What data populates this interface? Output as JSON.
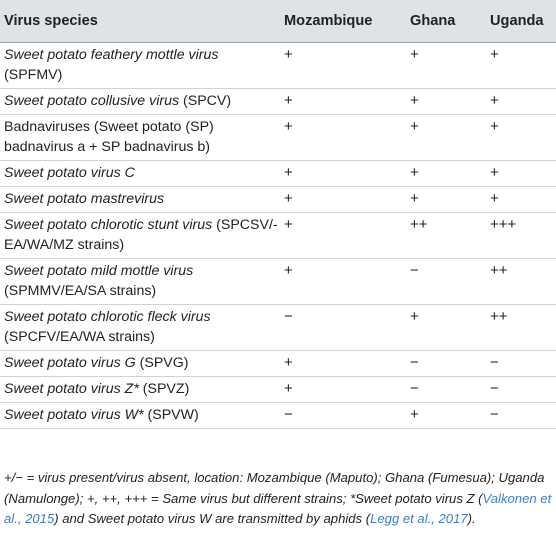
{
  "headers": [
    "Virus species",
    "Mozambique",
    "Ghana",
    "Uganda"
  ],
  "rows": [
    {
      "italic": "Sweet potato feathery mottle virus",
      "plain": " (SPFMV)",
      "moz": "+",
      "gha": "+",
      "uga": "+"
    },
    {
      "italic": "Sweet potato collusive virus",
      "plain": " (SPCV)",
      "moz": "+",
      "gha": "+",
      "uga": "+"
    },
    {
      "italic": "",
      "plain": "Badnaviruses (Sweet potato (SP) badnavirus a + SP badnavirus b)",
      "moz": "+",
      "gha": "+",
      "uga": "+"
    },
    {
      "italic": "Sweet potato virus C",
      "plain": "",
      "moz": "+",
      "gha": "+",
      "uga": "+"
    },
    {
      "italic": "Sweet potato mastrevirus",
      "plain": "",
      "moz": "+",
      "gha": "+",
      "uga": "+"
    },
    {
      "italic": "Sweet potato chlorotic stunt virus",
      "plain": " (SPCSV/-EA/WA/MZ strains)",
      "moz": "+",
      "gha": "++",
      "uga": "+++"
    },
    {
      "italic": "Sweet potato mild mottle virus",
      "plain": " (SPMMV/EA/SA strains)",
      "moz": "+",
      "gha": "−",
      "uga": "++"
    },
    {
      "italic": "Sweet potato chlorotic fleck virus",
      "plain": " (SPCFV/EA/WA strains)",
      "moz": "−",
      "gha": "+",
      "uga": "++"
    },
    {
      "italic": "Sweet potato virus G",
      "plain": " (SPVG)",
      "moz": "+",
      "gha": "−",
      "uga": "−"
    },
    {
      "italic": "Sweet potato virus Z*",
      "plain": " (SPVZ)",
      "moz": "+",
      "gha": "−",
      "uga": "−"
    },
    {
      "italic": "Sweet potato virus W*",
      "plain": " (SPVW)",
      "moz": "−",
      "gha": "+",
      "uga": "−"
    }
  ],
  "footnote": {
    "part1": "+/− = virus present/virus absent, location: Mozambique (Maputo); Ghana (Fumesua); Uganda (Namulonge); +, ++, +++ = Same virus but different strains; *Sweet potato virus Z (",
    "ref1": "Valkonen et al., 2015",
    "part2": ") and Sweet potato virus W are transmitted by aphids (",
    "ref2": "Legg et al., 2017",
    "part3": ")."
  },
  "colors": {
    "header_bg": "#dfe2e6",
    "link": "#3b7ec8",
    "rule": "#cfd2d6"
  }
}
